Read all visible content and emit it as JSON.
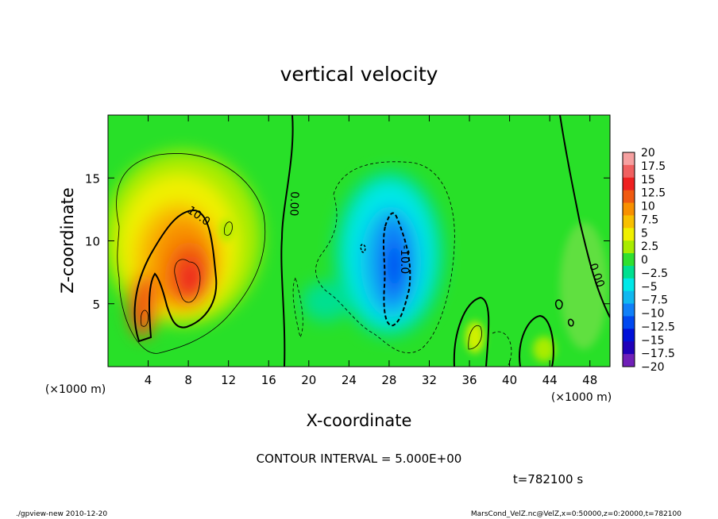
{
  "chart_data": {
    "type": "heatmap",
    "title": "vertical velocity",
    "xlabel": "X-coordinate",
    "ylabel": "Z-coordinate",
    "x_unit_label": "(×1000 m)",
    "y_unit_label": "(×1000 m)",
    "xlim": [
      0,
      50
    ],
    "ylim": [
      0,
      20
    ],
    "x_ticks": [
      "4",
      "8",
      "12",
      "16",
      "20",
      "24",
      "28",
      "32",
      "36",
      "40",
      "44",
      "48"
    ],
    "y_ticks": [
      "5",
      "10",
      "15"
    ],
    "colorbar": {
      "levels": [
        "20",
        "17.5",
        "15",
        "12.5",
        "10",
        "7.5",
        "5",
        "2.5",
        "0",
        "−2.5",
        "−5",
        "−7.5",
        "−10",
        "−12.5",
        "−15",
        "−17.5",
        "−20"
      ],
      "colors": [
        "#f6a0a0",
        "#f06060",
        "#ee2020",
        "#f05a10",
        "#f89000",
        "#f8c000",
        "#f0f000",
        "#a8ec00",
        "#30e030",
        "#00e090",
        "#00e8e8",
        "#10b8f0",
        "#1080f8",
        "#0048f0",
        "#0010d8",
        "#2000b8",
        "#7020b8"
      ]
    },
    "features": [
      {
        "sign": "positive",
        "peak": 17.5,
        "x": 8,
        "z": 8
      },
      {
        "sign": "positive",
        "peak": 12.5,
        "x": 3.5,
        "z": 4
      },
      {
        "sign": "negative",
        "peak": -12.5,
        "x": 28.5,
        "z": 7
      }
    ],
    "contour_labels": [
      "10.0",
      "0.00",
      "-10.0",
      "0.00"
    ],
    "contour_interval_text": "CONTOUR INTERVAL = 5.000E+00",
    "time_text": "t=782100 s",
    "grid": false
  },
  "footer": {
    "left": "./gpview-new   2010-12-20",
    "right": "MarsCond_VelZ.nc@VelZ,x=0:50000,z=0:20000,t=782100"
  }
}
